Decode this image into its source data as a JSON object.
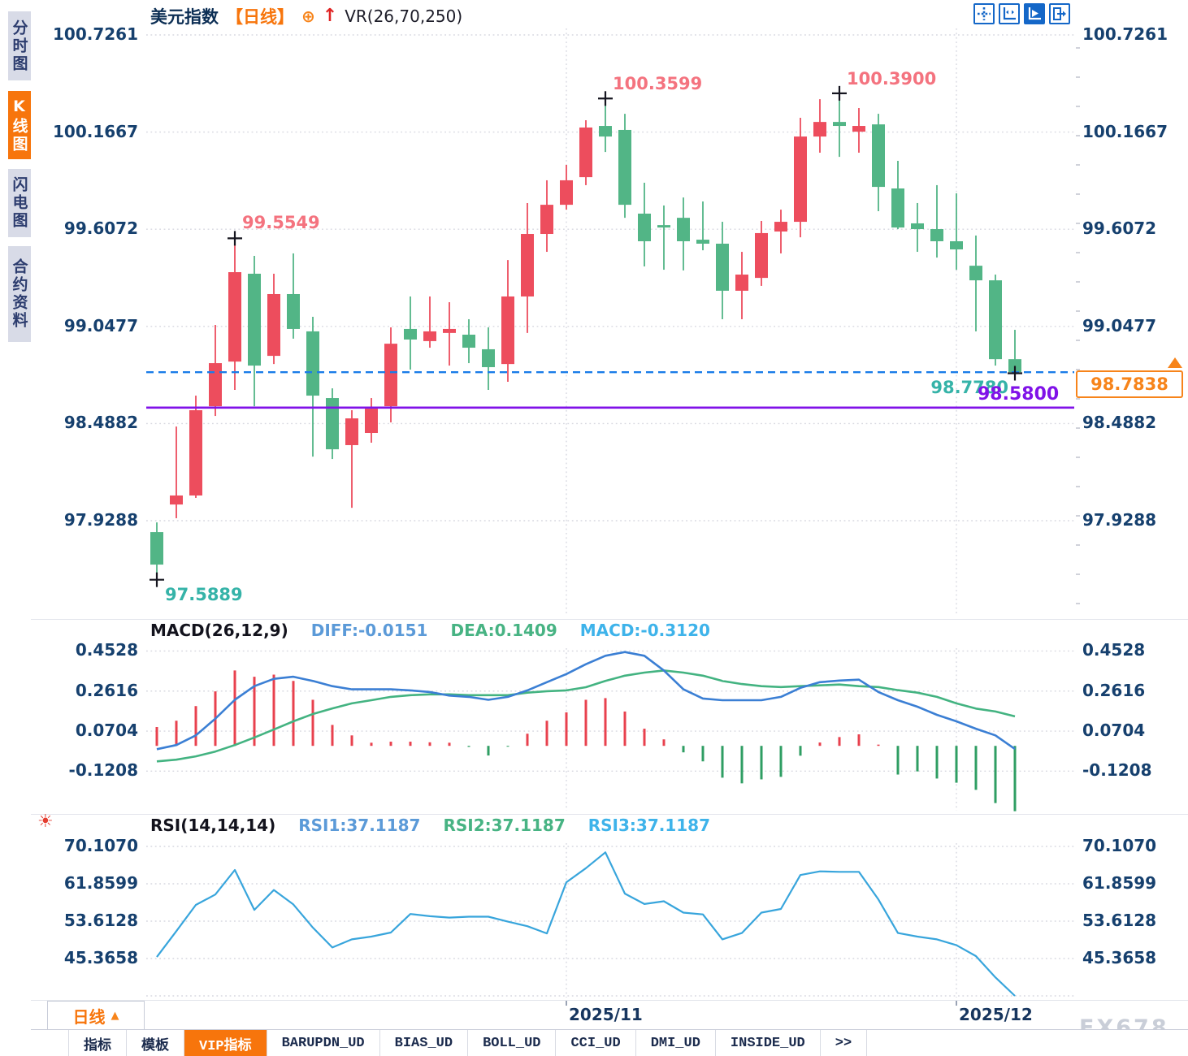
{
  "sidebar": {
    "tabs": [
      {
        "label": "分时图",
        "active": false
      },
      {
        "label": "K线图",
        "active": true
      },
      {
        "label": "闪电图",
        "active": false
      },
      {
        "label": "合约资料",
        "active": false
      }
    ]
  },
  "header": {
    "title": "美元指数",
    "period": "【日线】",
    "add_icon": "⊕",
    "up_arrow_icon": "↑",
    "indicator": "VR(26,70,250)"
  },
  "toolbar": {
    "icons": [
      "move-tool",
      "axis-scale-tool",
      "axis-play-tool",
      "export-tool"
    ],
    "active_icon": "axis-play-tool"
  },
  "main_axis": {
    "labels": [
      "100.7261",
      "100.1667",
      "99.6072",
      "99.0477",
      "98.4882",
      "97.9288"
    ]
  },
  "price_tag": "98.7838",
  "hlines": {
    "current_label": "98.7838",
    "support_label": "98.5800"
  },
  "macd": {
    "title": "MACD(26,12,9)",
    "diff_label": "DIFF:-0.0151",
    "dea_label": "DEA:0.1409",
    "macd_label": "MACD:-0.3120",
    "axis": [
      "0.4528",
      "0.2616",
      "0.0704",
      "-0.1208"
    ],
    "colors": {
      "diff_text": "#5b9ad8",
      "dea_text": "#47b383",
      "macd_text": "#3eb3ea"
    }
  },
  "rsi": {
    "title": "RSI(14,14,14)",
    "rsi1_label": "RSI1:37.1187",
    "rsi2_label": "RSI2:37.1187",
    "rsi3_label": "RSI3:37.1187",
    "axis": [
      "70.1070",
      "61.8599",
      "53.6128",
      "45.3658"
    ],
    "colors": {
      "rsi1_text": "#5b9ad8",
      "rsi2_text": "#47b383",
      "rsi3_text": "#3eb3ea"
    }
  },
  "bottom": {
    "period_box": "日线",
    "period_caret": "▲",
    "dates": [
      "2025/11",
      "2025/12"
    ],
    "watermark": "FX678",
    "tabs": [
      {
        "label": "指标",
        "active": false
      },
      {
        "label": "模板",
        "active": false
      },
      {
        "label": "VIP指标",
        "active": true
      },
      {
        "label": "BARUPDN_UD",
        "active": false
      },
      {
        "label": "BIAS_UD",
        "active": false
      },
      {
        "label": "BOLL_UD",
        "active": false
      },
      {
        "label": "CCI_UD",
        "active": false
      },
      {
        "label": "DMI_UD",
        "active": false
      },
      {
        "label": "INSIDE_UD",
        "active": false
      },
      {
        "label": ">>",
        "active": false
      }
    ]
  },
  "chart_data": [
    {
      "type": "candlestick",
      "symbol": "美元指数",
      "period": "日线",
      "y_axis": [
        100.7261,
        100.1667,
        99.6072,
        99.0477,
        98.4882,
        97.9288
      ],
      "x_gridline_indices": [
        21,
        41
      ],
      "x_gridline_labels": [
        "2025/11",
        "2025/12"
      ],
      "current_price": 98.7838,
      "support_line": 98.58,
      "up_color": "#ed4d5d",
      "down_color": "#52b586",
      "markers": [
        {
          "index": 0,
          "price": 97.5889,
          "position": "low",
          "label": "97.5889",
          "color": "#35b3a8"
        },
        {
          "index": 4,
          "price": 99.5549,
          "position": "high",
          "label": "99.5549",
          "color": "#f4737f"
        },
        {
          "index": 23,
          "price": 100.3599,
          "position": "high",
          "label": "100.3599",
          "color": "#f4737f"
        },
        {
          "index": 35,
          "price": 100.39,
          "position": "high",
          "label": "100.3900",
          "color": "#f4737f"
        },
        {
          "index": 44,
          "price": 98.778,
          "position": "low",
          "label": "98.7780",
          "color": "#35b3a8"
        }
      ],
      "candles": [
        [
          97.863,
          97.919,
          97.589,
          97.676
        ],
        [
          98.022,
          98.471,
          97.943,
          98.074
        ],
        [
          98.074,
          98.649,
          98.06,
          98.565
        ],
        [
          98.588,
          99.056,
          98.532,
          98.836
        ],
        [
          98.845,
          99.555,
          98.682,
          99.36
        ],
        [
          99.351,
          99.454,
          98.588,
          98.822
        ],
        [
          98.878,
          99.351,
          98.831,
          99.234
        ],
        [
          99.234,
          99.468,
          98.977,
          99.033
        ],
        [
          99.019,
          99.103,
          98.298,
          98.649
        ],
        [
          98.635,
          98.691,
          98.284,
          98.34
        ],
        [
          98.364,
          98.565,
          98.003,
          98.518
        ],
        [
          98.434,
          98.635,
          98.378,
          98.574
        ],
        [
          98.588,
          99.042,
          98.495,
          98.948
        ],
        [
          99.033,
          99.22,
          98.799,
          98.972
        ],
        [
          98.963,
          99.22,
          98.925,
          99.019
        ],
        [
          99.01,
          99.187,
          98.822,
          99.033
        ],
        [
          99.0,
          99.089,
          98.836,
          98.925
        ],
        [
          98.916,
          99.042,
          98.682,
          98.813
        ],
        [
          98.831,
          99.43,
          98.729,
          99.22
        ],
        [
          99.22,
          99.758,
          99.01,
          99.58
        ],
        [
          99.58,
          99.889,
          99.477,
          99.748
        ],
        [
          99.748,
          99.978,
          99.72,
          99.889
        ],
        [
          99.907,
          100.235,
          99.861,
          100.193
        ],
        [
          100.202,
          100.36,
          100.052,
          100.141
        ],
        [
          100.179,
          100.272,
          99.673,
          99.748
        ],
        [
          99.697,
          99.875,
          99.393,
          99.538
        ],
        [
          99.631,
          99.744,
          99.374,
          99.617
        ],
        [
          99.673,
          99.79,
          99.37,
          99.538
        ],
        [
          99.547,
          99.767,
          99.486,
          99.524
        ],
        [
          99.524,
          99.65,
          99.089,
          99.253
        ],
        [
          99.253,
          99.477,
          99.089,
          99.346
        ],
        [
          99.327,
          99.655,
          99.281,
          99.585
        ],
        [
          99.594,
          99.72,
          99.468,
          99.65
        ],
        [
          99.65,
          100.249,
          99.561,
          100.141
        ],
        [
          100.141,
          100.356,
          100.048,
          100.225
        ],
        [
          100.225,
          100.39,
          100.024,
          100.202
        ],
        [
          100.169,
          100.305,
          100.048,
          100.202
        ],
        [
          100.211,
          100.272,
          99.711,
          99.851
        ],
        [
          99.842,
          100.001,
          99.608,
          99.617
        ],
        [
          99.641,
          99.758,
          99.477,
          99.608
        ],
        [
          99.608,
          99.861,
          99.444,
          99.538
        ],
        [
          99.538,
          99.814,
          99.374,
          99.491
        ],
        [
          99.397,
          99.571,
          99.019,
          99.313
        ],
        [
          99.313,
          99.346,
          98.822,
          98.859
        ],
        [
          98.859,
          99.028,
          98.778,
          98.784
        ]
      ]
    },
    {
      "type": "line+bar",
      "title": "MACD(26,12,9)",
      "y_axis": [
        0.4528,
        0.2616,
        0.0704,
        -0.1208
      ],
      "current": {
        "diff": -0.0151,
        "dea": 0.1409,
        "macd": -0.312
      },
      "diff_color": "#3b7fd4",
      "dea_color": "#43b381",
      "hist_up_color": "#e8414e",
      "hist_down_color": "#2f9e63",
      "diff": [
        -0.016,
        0.004,
        0.05,
        0.13,
        0.22,
        0.285,
        0.32,
        0.33,
        0.31,
        0.285,
        0.27,
        0.27,
        0.27,
        0.265,
        0.257,
        0.24,
        0.234,
        0.22,
        0.234,
        0.265,
        0.304,
        0.343,
        0.39,
        0.43,
        0.448,
        0.43,
        0.36,
        0.27,
        0.226,
        0.218,
        0.218,
        0.218,
        0.234,
        0.277,
        0.304,
        0.312,
        0.316,
        0.257,
        0.218,
        0.187,
        0.148,
        0.117,
        0.082,
        0.05,
        -0.0151
      ],
      "dea": [
        -0.074,
        -0.066,
        -0.05,
        -0.027,
        0.004,
        0.04,
        0.078,
        0.117,
        0.152,
        0.179,
        0.203,
        0.218,
        0.234,
        0.242,
        0.246,
        0.246,
        0.242,
        0.242,
        0.242,
        0.254,
        0.261,
        0.265,
        0.28,
        0.31,
        0.335,
        0.35,
        0.36,
        0.35,
        0.335,
        0.31,
        0.295,
        0.285,
        0.281,
        0.285,
        0.289,
        0.293,
        0.285,
        0.281,
        0.266,
        0.254,
        0.234,
        0.203,
        0.178,
        0.164,
        0.1409
      ],
      "histogram": [
        0.09,
        0.12,
        0.19,
        0.26,
        0.36,
        0.33,
        0.34,
        0.31,
        0.22,
        0.1,
        0.05,
        0.015,
        0.02,
        0.02,
        0.017,
        0.015,
        -0.005,
        -0.046,
        -0.004,
        0.058,
        0.12,
        0.16,
        0.22,
        0.228,
        0.164,
        0.082,
        0.031,
        -0.031,
        -0.074,
        -0.152,
        -0.179,
        -0.16,
        -0.148,
        -0.047,
        0.016,
        0.042,
        0.055,
        0.006,
        -0.137,
        -0.122,
        -0.156,
        -0.176,
        -0.21,
        -0.273,
        -0.312
      ]
    },
    {
      "type": "line",
      "title": "RSI(14,14,14)",
      "y_axis": [
        70.107,
        61.8599,
        53.6128,
        45.3658
      ],
      "extra_gridline": 37.1187,
      "current": {
        "rsi1": 37.1187,
        "rsi2": 37.1187,
        "rsi3": 37.1187
      },
      "color": "#38a5dc",
      "values": [
        45.7,
        51.4,
        57.2,
        59.5,
        64.9,
        56.1,
        60.5,
        57.3,
        52.2,
        47.8,
        49.6,
        50.2,
        51.1,
        55.2,
        54.7,
        54.4,
        54.6,
        54.6,
        53.5,
        52.5,
        50.9,
        62.2,
        65.3,
        68.8,
        59.7,
        57.4,
        58.0,
        55.5,
        55.1,
        49.6,
        51.0,
        55.5,
        56.3,
        63.8,
        64.6,
        64.5,
        64.5,
        58.4,
        51.0,
        50.2,
        49.6,
        48.3,
        45.9,
        41.2,
        37.1187
      ]
    }
  ]
}
